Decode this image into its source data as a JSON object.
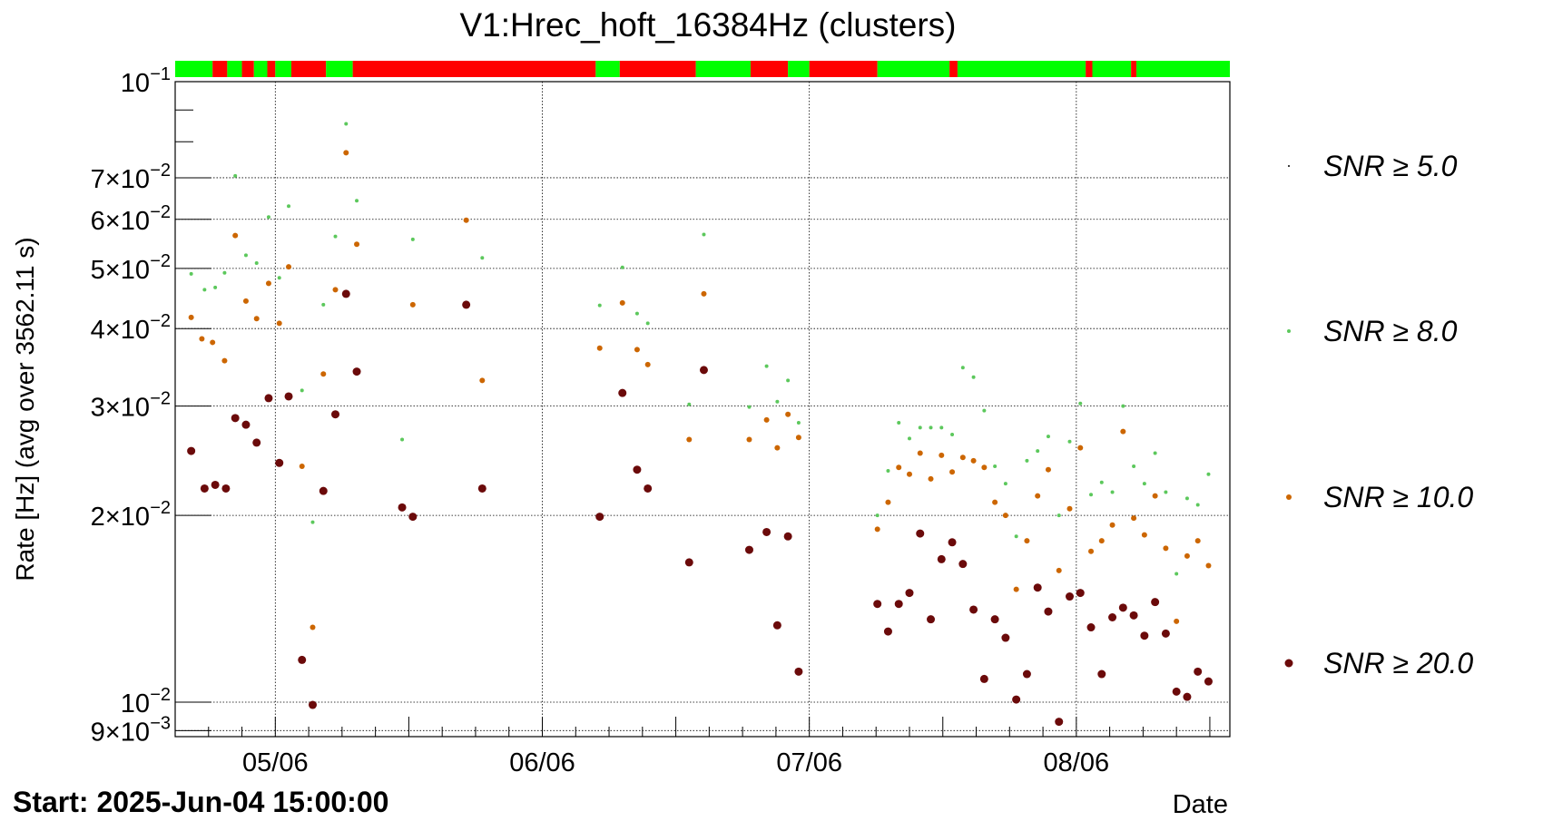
{
  "chart_data": {
    "type": "scatter",
    "title": "V1:Hrec_hoft_16384Hz (clusters)",
    "ylabel": "Rate [Hz] (avg over 3562.11 s)",
    "xlabel": "Date",
    "y_scale": "log",
    "ylim": [
      0.0088,
      0.1
    ],
    "xlim": [
      0,
      79
    ],
    "grid": true,
    "legend_placement": "right",
    "footer": "Start: 2025-Jun-04 15:00:00",
    "x_ticks": [
      {
        "x": 7.5,
        "label": "05/06"
      },
      {
        "x": 27.5,
        "label": "06/06"
      },
      {
        "x": 47.5,
        "label": "07/06"
      },
      {
        "x": 67.5,
        "label": "08/06"
      }
    ],
    "y_ticks": [
      {
        "y": 0.1,
        "label": "10",
        "exp": "−1"
      },
      {
        "y": 0.07,
        "label": "7×10",
        "exp": "−2"
      },
      {
        "y": 0.06,
        "label": "6×10",
        "exp": "−2"
      },
      {
        "y": 0.05,
        "label": "5×10",
        "exp": "−2"
      },
      {
        "y": 0.04,
        "label": "4×10",
        "exp": "−2"
      },
      {
        "y": 0.03,
        "label": "3×10",
        "exp": "−2"
      },
      {
        "y": 0.02,
        "label": "2×10",
        "exp": "−2"
      },
      {
        "y": 0.01,
        "label": "10",
        "exp": "−2"
      },
      {
        "y": 0.009,
        "label": "9×10",
        "exp": "−3"
      }
    ],
    "state_segments": [
      {
        "x0": 0,
        "x1": 2.8,
        "state": "green"
      },
      {
        "x0": 2.8,
        "x1": 3.9,
        "state": "red"
      },
      {
        "x0": 3.9,
        "x1": 5.0,
        "state": "green"
      },
      {
        "x0": 5.0,
        "x1": 5.9,
        "state": "red"
      },
      {
        "x0": 5.9,
        "x1": 6.9,
        "state": "green"
      },
      {
        "x0": 6.9,
        "x1": 7.5,
        "state": "red"
      },
      {
        "x0": 7.5,
        "x1": 8.7,
        "state": "green"
      },
      {
        "x0": 8.7,
        "x1": 11.3,
        "state": "red"
      },
      {
        "x0": 11.3,
        "x1": 13.3,
        "state": "green"
      },
      {
        "x0": 13.3,
        "x1": 31.5,
        "state": "red"
      },
      {
        "x0": 31.5,
        "x1": 33.3,
        "state": "green"
      },
      {
        "x0": 33.3,
        "x1": 39.0,
        "state": "red"
      },
      {
        "x0": 39.0,
        "x1": 43.1,
        "state": "green"
      },
      {
        "x0": 43.1,
        "x1": 45.9,
        "state": "red"
      },
      {
        "x0": 45.9,
        "x1": 47.5,
        "state": "green"
      },
      {
        "x0": 47.5,
        "x1": 52.6,
        "state": "red"
      },
      {
        "x0": 52.6,
        "x1": 58.0,
        "state": "green"
      },
      {
        "x0": 58.0,
        "x1": 58.6,
        "state": "red"
      },
      {
        "x0": 58.6,
        "x1": 68.2,
        "state": "green"
      },
      {
        "x0": 68.2,
        "x1": 68.7,
        "state": "red"
      },
      {
        "x0": 68.7,
        "x1": 71.6,
        "state": "green"
      },
      {
        "x0": 71.6,
        "x1": 72.0,
        "state": "red"
      },
      {
        "x0": 72.0,
        "x1": 79.0,
        "state": "green"
      }
    ],
    "series": [
      {
        "name": "SNR ≥ 5.0",
        "color": "#000000",
        "points": []
      },
      {
        "name": "SNR ≥ 8.0",
        "color": "#5cc85c",
        "points": [
          [
            1.2,
            0.049
          ],
          [
            2.2,
            0.0462
          ],
          [
            3.0,
            0.0466
          ],
          [
            3.7,
            0.0492
          ],
          [
            4.5,
            0.0705
          ],
          [
            5.3,
            0.0525
          ],
          [
            6.1,
            0.051
          ],
          [
            7.0,
            0.0605
          ],
          [
            7.8,
            0.0483
          ],
          [
            8.5,
            0.063
          ],
          [
            9.5,
            0.0318
          ],
          [
            10.3,
            0.0195
          ],
          [
            11.1,
            0.0437
          ],
          [
            12.0,
            0.0563
          ],
          [
            12.8,
            0.0855
          ],
          [
            13.6,
            0.0643
          ],
          [
            17.0,
            0.0265
          ],
          [
            17.8,
            0.0557
          ],
          [
            23.0,
            0.052
          ],
          [
            31.8,
            0.0436
          ],
          [
            33.5,
            0.0502
          ],
          [
            34.6,
            0.0423
          ],
          [
            35.4,
            0.0408
          ],
          [
            38.5,
            0.0302
          ],
          [
            39.6,
            0.0567
          ],
          [
            43.0,
            0.0299
          ],
          [
            44.3,
            0.0348
          ],
          [
            45.1,
            0.0305
          ],
          [
            45.9,
            0.033
          ],
          [
            46.7,
            0.0282
          ],
          [
            52.6,
            0.02
          ],
          [
            53.4,
            0.0236
          ],
          [
            54.2,
            0.0282
          ],
          [
            55.0,
            0.0266
          ],
          [
            55.8,
            0.0277
          ],
          [
            56.6,
            0.0277
          ],
          [
            57.4,
            0.0277
          ],
          [
            58.2,
            0.027
          ],
          [
            59.0,
            0.0346
          ],
          [
            59.8,
            0.0334
          ],
          [
            60.6,
            0.0295
          ],
          [
            61.4,
            0.024
          ],
          [
            62.2,
            0.0225
          ],
          [
            63.0,
            0.0185
          ],
          [
            63.8,
            0.0245
          ],
          [
            64.6,
            0.0254
          ],
          [
            65.4,
            0.0268
          ],
          [
            66.2,
            0.02
          ],
          [
            67.0,
            0.0263
          ],
          [
            67.8,
            0.0303
          ],
          [
            68.6,
            0.0216
          ],
          [
            69.4,
            0.0226
          ],
          [
            70.2,
            0.0218
          ],
          [
            71.0,
            0.03
          ],
          [
            71.8,
            0.024
          ],
          [
            72.6,
            0.0225
          ],
          [
            73.4,
            0.0252
          ],
          [
            74.2,
            0.0218
          ],
          [
            75.0,
            0.0161
          ],
          [
            75.8,
            0.0213
          ],
          [
            76.6,
            0.0208
          ],
          [
            77.4,
            0.0233
          ]
        ]
      },
      {
        "name": "SNR ≥ 10.0",
        "color": "#cc6600",
        "points": [
          [
            1.2,
            0.0417
          ],
          [
            2.0,
            0.0385
          ],
          [
            2.8,
            0.038
          ],
          [
            3.7,
            0.0355
          ],
          [
            4.5,
            0.0565
          ],
          [
            5.3,
            0.0443
          ],
          [
            6.1,
            0.0415
          ],
          [
            7.0,
            0.0473
          ],
          [
            7.8,
            0.0408
          ],
          [
            8.5,
            0.0503
          ],
          [
            9.5,
            0.024
          ],
          [
            10.3,
            0.0132
          ],
          [
            11.1,
            0.0338
          ],
          [
            12.0,
            0.0462
          ],
          [
            12.8,
            0.0768
          ],
          [
            13.6,
            0.0547
          ],
          [
            17.8,
            0.0437
          ],
          [
            21.8,
            0.0598
          ],
          [
            23.0,
            0.033
          ],
          [
            31.8,
            0.0372
          ],
          [
            33.5,
            0.044
          ],
          [
            34.6,
            0.037
          ],
          [
            35.4,
            0.035
          ],
          [
            38.5,
            0.0265
          ],
          [
            39.6,
            0.0455
          ],
          [
            43.0,
            0.0265
          ],
          [
            44.3,
            0.0285
          ],
          [
            45.1,
            0.0257
          ],
          [
            45.9,
            0.0291
          ],
          [
            46.7,
            0.0267
          ],
          [
            52.6,
            0.019
          ],
          [
            53.4,
            0.021
          ],
          [
            54.2,
            0.0239
          ],
          [
            55.0,
            0.0233
          ],
          [
            55.8,
            0.0252
          ],
          [
            56.6,
            0.0229
          ],
          [
            57.4,
            0.025
          ],
          [
            58.2,
            0.0235
          ],
          [
            59.0,
            0.0248
          ],
          [
            59.8,
            0.0245
          ],
          [
            60.6,
            0.0239
          ],
          [
            61.4,
            0.021
          ],
          [
            62.2,
            0.02
          ],
          [
            63.0,
            0.0152
          ],
          [
            63.8,
            0.0182
          ],
          [
            64.6,
            0.0215
          ],
          [
            65.4,
            0.0237
          ],
          [
            66.2,
            0.0163
          ],
          [
            67.0,
            0.0205
          ],
          [
            67.8,
            0.0257
          ],
          [
            68.6,
            0.0175
          ],
          [
            69.4,
            0.0182
          ],
          [
            70.2,
            0.0193
          ],
          [
            71.0,
            0.0273
          ],
          [
            71.8,
            0.0198
          ],
          [
            72.6,
            0.0186
          ],
          [
            73.4,
            0.0215
          ],
          [
            74.2,
            0.0177
          ],
          [
            75.0,
            0.0135
          ],
          [
            75.8,
            0.0172
          ],
          [
            76.6,
            0.0182
          ],
          [
            77.4,
            0.0166
          ]
        ]
      },
      {
        "name": "SNR ≥ 20.0",
        "color": "#6b0a0a",
        "points": [
          [
            1.2,
            0.0254
          ],
          [
            2.2,
            0.0221
          ],
          [
            3.0,
            0.0224
          ],
          [
            3.8,
            0.0221
          ],
          [
            4.5,
            0.0287
          ],
          [
            5.3,
            0.028
          ],
          [
            6.1,
            0.0262
          ],
          [
            7.0,
            0.0309
          ],
          [
            7.8,
            0.0243
          ],
          [
            8.5,
            0.0311
          ],
          [
            9.5,
            0.0117
          ],
          [
            10.3,
            0.0099
          ],
          [
            11.1,
            0.0219
          ],
          [
            12.0,
            0.0291
          ],
          [
            12.8,
            0.0455
          ],
          [
            13.6,
            0.0341
          ],
          [
            17.0,
            0.0206
          ],
          [
            17.8,
            0.0199
          ],
          [
            21.8,
            0.0437
          ],
          [
            23.0,
            0.0221
          ],
          [
            31.8,
            0.0199
          ],
          [
            33.5,
            0.0315
          ],
          [
            34.6,
            0.0237
          ],
          [
            35.4,
            0.0221
          ],
          [
            38.5,
            0.0168
          ],
          [
            39.6,
            0.0343
          ],
          [
            43.0,
            0.0176
          ],
          [
            44.3,
            0.0188
          ],
          [
            45.1,
            0.0133
          ],
          [
            45.9,
            0.0185
          ],
          [
            46.7,
            0.0112
          ],
          [
            52.6,
            0.0144
          ],
          [
            53.4,
            0.013
          ],
          [
            54.2,
            0.0144
          ],
          [
            55.0,
            0.015
          ],
          [
            55.8,
            0.0187
          ],
          [
            56.6,
            0.0136
          ],
          [
            57.4,
            0.017
          ],
          [
            58.2,
            0.0181
          ],
          [
            59.0,
            0.0167
          ],
          [
            59.8,
            0.0141
          ],
          [
            60.6,
            0.0109
          ],
          [
            61.4,
            0.0136
          ],
          [
            62.2,
            0.0127
          ],
          [
            63.0,
            0.0101
          ],
          [
            63.8,
            0.0111
          ],
          [
            64.6,
            0.0153
          ],
          [
            65.4,
            0.014
          ],
          [
            66.2,
            0.0093
          ],
          [
            67.0,
            0.0148
          ],
          [
            67.8,
            0.015
          ],
          [
            68.6,
            0.0132
          ],
          [
            69.4,
            0.0111
          ],
          [
            70.2,
            0.0137
          ],
          [
            71.0,
            0.0142
          ],
          [
            71.8,
            0.0138
          ],
          [
            72.6,
            0.0128
          ],
          [
            73.4,
            0.0145
          ],
          [
            74.2,
            0.0129
          ],
          [
            75.0,
            0.0104
          ],
          [
            75.8,
            0.0102
          ],
          [
            76.6,
            0.0112
          ],
          [
            77.4,
            0.0108
          ]
        ]
      }
    ]
  }
}
